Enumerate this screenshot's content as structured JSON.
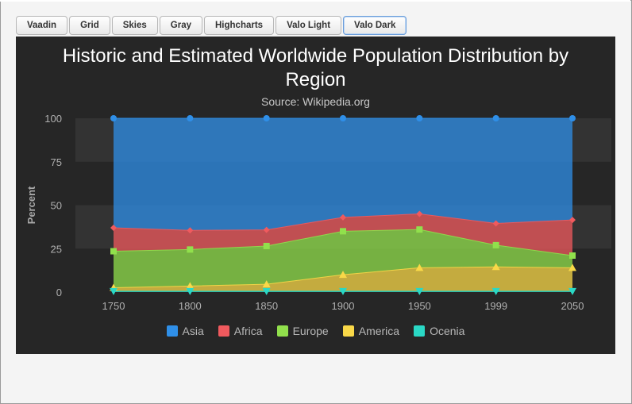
{
  "theme_buttons": [
    {
      "label": "Vaadin"
    },
    {
      "label": "Grid"
    },
    {
      "label": "Skies"
    },
    {
      "label": "Gray"
    },
    {
      "label": "Highcharts"
    },
    {
      "label": "Valo Light"
    },
    {
      "label": "Valo Dark",
      "active": true
    }
  ],
  "colors": {
    "Asia": "#2f8fe8",
    "Africa": "#f05a5e",
    "Europe": "#91e04c",
    "America": "#f9d848",
    "Ocenia": "#2ad8c5",
    "chart_background": "#262626",
    "plot_band": "#333333"
  },
  "chart_data": {
    "type": "area",
    "stacking": "percent",
    "title": "Historic and Estimated Worldwide Population Distribution by Region",
    "subtitle": "Source: Wikipedia.org",
    "ylabel": "Percent",
    "ylim": [
      0,
      100
    ],
    "yticks": [
      "0",
      "25",
      "50",
      "75",
      "100"
    ],
    "categories": [
      "1750",
      "1800",
      "1850",
      "1900",
      "1950",
      "1999",
      "2050"
    ],
    "plot_bands": [
      [
        25,
        50
      ],
      [
        75,
        100
      ]
    ],
    "legend_position": "bottom-center",
    "series": [
      {
        "name": "Asia",
        "marker": "circle",
        "cumulative_top": [
          100,
          100,
          100,
          100,
          100,
          100,
          100
        ]
      },
      {
        "name": "Africa",
        "marker": "diamond",
        "cumulative_top": [
          37,
          35.5,
          35.8,
          43,
          45,
          39.5,
          41.5
        ]
      },
      {
        "name": "Europe",
        "marker": "square",
        "cumulative_top": [
          23.5,
          24.5,
          26.5,
          35,
          36,
          27,
          21
        ]
      },
      {
        "name": "America",
        "marker": "triangle",
        "cumulative_top": [
          2.5,
          3.5,
          4.5,
          10,
          14,
          14.5,
          14
        ]
      },
      {
        "name": "Ocenia",
        "marker": "triangle-down",
        "cumulative_top": [
          0.5,
          0.5,
          0.5,
          0.5,
          0.5,
          0.5,
          0.5
        ]
      }
    ]
  }
}
